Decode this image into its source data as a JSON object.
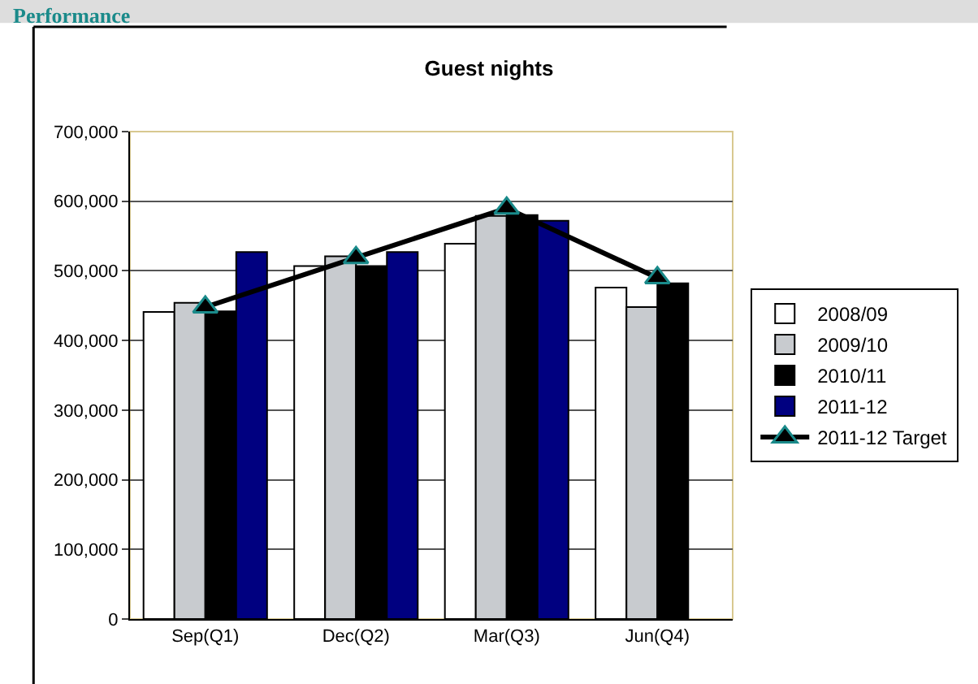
{
  "chart_data": {
    "type": "bar",
    "title": "Guest nights",
    "annotations": [
      "Performance"
    ],
    "categories": [
      "Sep(Q1)",
      "Dec(Q2)",
      "Mar(Q3)",
      "Jun(Q4)"
    ],
    "series": [
      {
        "name": "2008/09",
        "color": "#ffffff",
        "values": [
          441000,
          507000,
          539000,
          476000
        ]
      },
      {
        "name": "2009/10",
        "color": "#c8cbcf",
        "values": [
          454000,
          521000,
          579000,
          448000
        ]
      },
      {
        "name": "2010/11",
        "color": "#000000",
        "values": [
          442000,
          507000,
          580000,
          482000
        ]
      },
      {
        "name": "2011-12",
        "color": "#000080",
        "values": [
          527000,
          527000,
          572000,
          null
        ]
      },
      {
        "name": "2011-12 Target",
        "type": "line",
        "color": "#000000",
        "marker": "triangle",
        "values": [
          448000,
          519000,
          590000,
          490000
        ]
      }
    ],
    "ylim": [
      0,
      700000
    ],
    "yticks": [
      {
        "value": 0,
        "label": "0"
      },
      {
        "value": 100000,
        "label": "100,000"
      },
      {
        "value": 200000,
        "label": "200,000"
      },
      {
        "value": 300000,
        "label": "300,000"
      },
      {
        "value": 400000,
        "label": "400,000"
      },
      {
        "value": 500000,
        "label": "500,000"
      },
      {
        "value": 600000,
        "label": "600,000"
      },
      {
        "value": 700000,
        "label": "700,000"
      }
    ],
    "grid": "y",
    "legend": "right"
  }
}
